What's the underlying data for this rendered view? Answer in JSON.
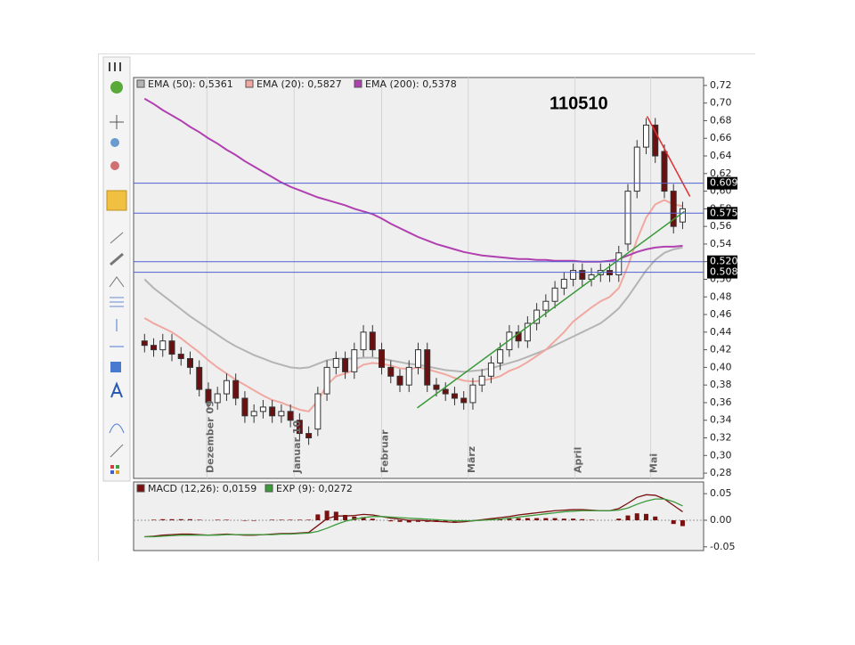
{
  "chart_data": [
    {
      "type": "candlestick",
      "title": "110510",
      "x": [
        1,
        2,
        3,
        4,
        5,
        6,
        7,
        8,
        9,
        10,
        11,
        12,
        13,
        14,
        15,
        16,
        17,
        18,
        19,
        20,
        21,
        22,
        23,
        24,
        25,
        26,
        27,
        28,
        29,
        30,
        31,
        32,
        33,
        34,
        35,
        36,
        37,
        38,
        39,
        40,
        41,
        42,
        43,
        44,
        45,
        46,
        47,
        48,
        49,
        50,
        51,
        52,
        53,
        54,
        55,
        56,
        57,
        58,
        59,
        60
      ],
      "open": [
        0.43,
        0.425,
        0.42,
        0.43,
        0.415,
        0.41,
        0.4,
        0.375,
        0.36,
        0.37,
        0.385,
        0.365,
        0.345,
        0.35,
        0.355,
        0.345,
        0.35,
        0.34,
        0.325,
        0.33,
        0.37,
        0.4,
        0.41,
        0.395,
        0.42,
        0.44,
        0.42,
        0.4,
        0.39,
        0.38,
        0.4,
        0.42,
        0.38,
        0.375,
        0.37,
        0.365,
        0.36,
        0.38,
        0.39,
        0.405,
        0.42,
        0.44,
        0.43,
        0.45,
        0.465,
        0.475,
        0.49,
        0.5,
        0.51,
        0.5,
        0.505,
        0.51,
        0.505,
        0.54,
        0.6,
        0.65,
        0.675,
        0.645,
        0.6,
        0.565
      ],
      "high": [
        0.438,
        0.433,
        0.438,
        0.438,
        0.423,
        0.418,
        0.408,
        0.383,
        0.378,
        0.393,
        0.393,
        0.373,
        0.358,
        0.363,
        0.363,
        0.358,
        0.358,
        0.348,
        0.333,
        0.378,
        0.408,
        0.418,
        0.418,
        0.428,
        0.448,
        0.448,
        0.428,
        0.408,
        0.398,
        0.408,
        0.428,
        0.428,
        0.388,
        0.383,
        0.378,
        0.373,
        0.388,
        0.398,
        0.413,
        0.428,
        0.448,
        0.448,
        0.458,
        0.473,
        0.483,
        0.498,
        0.508,
        0.518,
        0.518,
        0.513,
        0.518,
        0.518,
        0.538,
        0.608,
        0.658,
        0.683,
        0.683,
        0.653,
        0.608,
        0.588
      ],
      "low": [
        0.417,
        0.412,
        0.412,
        0.407,
        0.402,
        0.392,
        0.367,
        0.352,
        0.352,
        0.362,
        0.357,
        0.337,
        0.337,
        0.342,
        0.337,
        0.337,
        0.332,
        0.317,
        0.312,
        0.322,
        0.362,
        0.392,
        0.387,
        0.387,
        0.412,
        0.412,
        0.392,
        0.382,
        0.372,
        0.372,
        0.392,
        0.372,
        0.367,
        0.362,
        0.357,
        0.352,
        0.352,
        0.372,
        0.382,
        0.397,
        0.412,
        0.422,
        0.422,
        0.442,
        0.457,
        0.467,
        0.482,
        0.492,
        0.492,
        0.492,
        0.497,
        0.497,
        0.497,
        0.532,
        0.592,
        0.642,
        0.632,
        0.592,
        0.552,
        0.557
      ],
      "close": [
        0.425,
        0.42,
        0.43,
        0.415,
        0.41,
        0.4,
        0.375,
        0.36,
        0.37,
        0.385,
        0.365,
        0.345,
        0.35,
        0.355,
        0.345,
        0.35,
        0.34,
        0.325,
        0.32,
        0.37,
        0.4,
        0.41,
        0.395,
        0.42,
        0.44,
        0.42,
        0.4,
        0.39,
        0.38,
        0.4,
        0.42,
        0.38,
        0.375,
        0.37,
        0.365,
        0.36,
        0.38,
        0.39,
        0.405,
        0.42,
        0.44,
        0.43,
        0.45,
        0.465,
        0.475,
        0.49,
        0.5,
        0.51,
        0.5,
        0.505,
        0.51,
        0.505,
        0.53,
        0.6,
        0.65,
        0.675,
        0.64,
        0.6,
        0.56,
        0.58
      ],
      "up_color": "#ffffff",
      "down_color": "#6b1010",
      "series": [
        {
          "name": "EMA (50): 0,5361",
          "color": "#b4b4b4",
          "values": [
            0.5,
            0.49,
            0.482,
            0.474,
            0.466,
            0.458,
            0.451,
            0.444,
            0.437,
            0.43,
            0.424,
            0.419,
            0.414,
            0.41,
            0.406,
            0.403,
            0.4,
            0.399,
            0.4,
            0.404,
            0.408,
            0.41,
            0.41,
            0.41,
            0.411,
            0.411,
            0.41,
            0.408,
            0.406,
            0.404,
            0.403,
            0.401,
            0.399,
            0.397,
            0.396,
            0.395,
            0.396,
            0.397,
            0.399,
            0.402,
            0.405,
            0.408,
            0.412,
            0.416,
            0.42,
            0.425,
            0.43,
            0.435,
            0.44,
            0.445,
            0.45,
            0.458,
            0.467,
            0.48,
            0.495,
            0.51,
            0.522,
            0.53,
            0.534,
            0.536
          ]
        },
        {
          "name": "EMA (20): 0,5827",
          "color": "#f0a8a0",
          "values": [
            0.456,
            0.45,
            0.445,
            0.44,
            0.433,
            0.425,
            0.417,
            0.408,
            0.4,
            0.393,
            0.386,
            0.38,
            0.374,
            0.368,
            0.363,
            0.36,
            0.356,
            0.352,
            0.35,
            0.362,
            0.38,
            0.39,
            0.393,
            0.397,
            0.403,
            0.405,
            0.404,
            0.402,
            0.399,
            0.398,
            0.4,
            0.398,
            0.395,
            0.392,
            0.388,
            0.385,
            0.384,
            0.385,
            0.387,
            0.39,
            0.396,
            0.4,
            0.406,
            0.413,
            0.42,
            0.43,
            0.44,
            0.452,
            0.46,
            0.468,
            0.475,
            0.48,
            0.49,
            0.515,
            0.545,
            0.57,
            0.585,
            0.59,
            0.585,
            0.583
          ]
        },
        {
          "name": "EMA (200): 0,5378",
          "color": "#b040b0",
          "values": [
            0.705,
            0.699,
            0.692,
            0.686,
            0.68,
            0.673,
            0.667,
            0.66,
            0.654,
            0.647,
            0.641,
            0.634,
            0.628,
            0.622,
            0.616,
            0.61,
            0.605,
            0.601,
            0.597,
            0.593,
            0.59,
            0.587,
            0.584,
            0.58,
            0.577,
            0.574,
            0.569,
            0.563,
            0.558,
            0.553,
            0.548,
            0.544,
            0.54,
            0.537,
            0.534,
            0.531,
            0.529,
            0.527,
            0.526,
            0.525,
            0.524,
            0.523,
            0.523,
            0.522,
            0.522,
            0.521,
            0.521,
            0.521,
            0.52,
            0.52,
            0.52,
            0.521,
            0.523,
            0.527,
            0.531,
            0.534,
            0.536,
            0.537,
            0.537,
            0.538
          ]
        }
      ],
      "hlines": [
        {
          "value": 0.609,
          "label": "0.609",
          "color": "#5060d0"
        },
        {
          "value": 0.575,
          "label": "0.575",
          "color": "#5060d0"
        },
        {
          "value": 0.52,
          "label": "0.520",
          "color": "#5060d0"
        },
        {
          "value": 0.508,
          "label": "0.508",
          "color": "#5060d0"
        }
      ],
      "trendlines": [
        {
          "color": "#3a9a3a",
          "x": [
            30.9,
            60.2
          ],
          "y": [
            0.354,
            0.577
          ]
        },
        {
          "color": "#e03030",
          "x": [
            56.1,
            60.8
          ],
          "y": [
            0.685,
            0.594
          ]
        }
      ],
      "xlim": [
        -0.2,
        62.3
      ],
      "xticks": [
        {
          "value": 7.84,
          "label": "Dezember 09"
        },
        {
          "value": 17.4,
          "label": "Januar 10"
        },
        {
          "value": 27,
          "label": "Februar"
        },
        {
          "value": 36.5,
          "label": "März"
        },
        {
          "value": 48.2,
          "label": "April"
        },
        {
          "value": 56.5,
          "label": "Mai"
        }
      ],
      "ylim": [
        0.274,
        0.729
      ],
      "yticks": [
        {
          "value": 0.72,
          "label": "0,72"
        },
        {
          "value": 0.7,
          "label": "0,70"
        },
        {
          "value": 0.68,
          "label": "0,68"
        },
        {
          "value": 0.66,
          "label": "0,66"
        },
        {
          "value": 0.64,
          "label": "0,64"
        },
        {
          "value": 0.62,
          "label": "0,62"
        },
        {
          "value": 0.6,
          "label": "0,60"
        },
        {
          "value": 0.58,
          "label": "0,58"
        },
        {
          "value": 0.56,
          "label": "0,56"
        },
        {
          "value": 0.54,
          "label": "0,54"
        },
        {
          "value": 0.52,
          "label": "0,52"
        },
        {
          "value": 0.5,
          "label": "0,50"
        },
        {
          "value": 0.48,
          "label": "0,48"
        },
        {
          "value": 0.46,
          "label": "0,46"
        },
        {
          "value": 0.44,
          "label": "0,44"
        },
        {
          "value": 0.42,
          "label": "0,42"
        },
        {
          "value": 0.4,
          "label": "0,40"
        },
        {
          "value": 0.38,
          "label": "0,38"
        },
        {
          "value": 0.36,
          "label": "0,36"
        },
        {
          "value": 0.34,
          "label": "0,34"
        },
        {
          "value": 0.32,
          "label": "0,32"
        },
        {
          "value": 0.3,
          "label": "0,30"
        },
        {
          "value": 0.28,
          "label": "0,28"
        }
      ]
    },
    {
      "type": "macd",
      "x": [
        1,
        2,
        3,
        4,
        5,
        6,
        7,
        8,
        9,
        10,
        11,
        12,
        13,
        14,
        15,
        16,
        17,
        18,
        19,
        20,
        21,
        22,
        23,
        24,
        25,
        26,
        27,
        28,
        29,
        30,
        31,
        32,
        33,
        34,
        35,
        36,
        37,
        38,
        39,
        40,
        41,
        42,
        43,
        44,
        45,
        46,
        47,
        48,
        49,
        50,
        51,
        52,
        53,
        54,
        55,
        56,
        57,
        58,
        59,
        60
      ],
      "series": [
        {
          "name": "MACD (12,26): 0,0159",
          "color": "#7a1010",
          "values": [
            -0.031,
            -0.03,
            -0.028,
            -0.027,
            -0.026,
            -0.026,
            -0.027,
            -0.028,
            -0.027,
            -0.026,
            -0.027,
            -0.028,
            -0.028,
            -0.027,
            -0.026,
            -0.025,
            -0.025,
            -0.024,
            -0.023,
            -0.01,
            0.003,
            0.008,
            0.008,
            0.009,
            0.011,
            0.01,
            0.007,
            0.004,
            0.002,
            0,
            0,
            -0.001,
            -0.002,
            -0.003,
            -0.004,
            -0.003,
            -0.001,
            0.001,
            0.003,
            0.005,
            0.007,
            0.01,
            0.012,
            0.014,
            0.016,
            0.018,
            0.019,
            0.02,
            0.02,
            0.019,
            0.018,
            0.018,
            0.022,
            0.032,
            0.043,
            0.048,
            0.047,
            0.04,
            0.028,
            0.016
          ]
        },
        {
          "name": "EXP (9): 0,0272",
          "color": "#3a9a3a",
          "values": [
            -0.031,
            -0.031,
            -0.03,
            -0.029,
            -0.028,
            -0.028,
            -0.028,
            -0.028,
            -0.028,
            -0.027,
            -0.027,
            -0.027,
            -0.027,
            -0.027,
            -0.027,
            -0.026,
            -0.026,
            -0.025,
            -0.024,
            -0.021,
            -0.015,
            -0.008,
            -0.002,
            0.002,
            0.005,
            0.007,
            0.007,
            0.006,
            0.005,
            0.004,
            0.003,
            0.002,
            0.001,
            0,
            -0.001,
            -0.001,
            -0.001,
            0,
            0.001,
            0.002,
            0.004,
            0.006,
            0.008,
            0.01,
            0.012,
            0.014,
            0.016,
            0.017,
            0.018,
            0.018,
            0.018,
            0.018,
            0.019,
            0.023,
            0.03,
            0.036,
            0.04,
            0.04,
            0.035,
            0.027
          ]
        }
      ],
      "histogram": {
        "color": "#7a1010",
        "values": [
          0,
          0.001,
          0.002,
          0.002,
          0.002,
          0.002,
          0.001,
          0,
          0.001,
          0.001,
          0,
          -0.001,
          -0.001,
          0,
          0.001,
          0.001,
          0.001,
          0.001,
          0.001,
          0.011,
          0.018,
          0.016,
          0.01,
          0.007,
          0.006,
          0.003,
          0,
          -0.002,
          -0.003,
          -0.004,
          -0.003,
          -0.003,
          -0.003,
          -0.003,
          -0.003,
          -0.002,
          0,
          0.001,
          0.002,
          0.003,
          0.003,
          0.004,
          0.004,
          0.004,
          0.004,
          0.004,
          0.003,
          0.003,
          0.002,
          0.001,
          0,
          0,
          0.003,
          0.009,
          0.013,
          0.012,
          0.007,
          0,
          -0.007,
          -0.011
        ]
      },
      "xlim": [
        -0.2,
        62.3
      ],
      "ylim": [
        -0.057,
        0.072
      ],
      "yticks": [
        0.05,
        {
          "value": 0,
          "label": "0.00"
        },
        -0.05
      ]
    }
  ]
}
